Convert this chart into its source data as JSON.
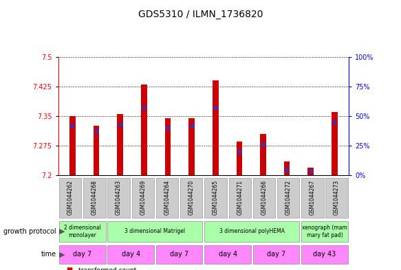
{
  "title": "GDS5310 / ILMN_1736820",
  "samples": [
    "GSM1044262",
    "GSM1044268",
    "GSM1044263",
    "GSM1044269",
    "GSM1044264",
    "GSM1044270",
    "GSM1044265",
    "GSM1044271",
    "GSM1044266",
    "GSM1044272",
    "GSM1044267",
    "GSM1044273"
  ],
  "transformed_counts": [
    7.35,
    7.325,
    7.355,
    7.43,
    7.345,
    7.345,
    7.44,
    7.285,
    7.305,
    7.235,
    7.22,
    7.36
  ],
  "percentile_ranks": [
    42,
    37,
    43,
    57,
    40,
    42,
    57,
    20,
    26,
    5,
    4,
    45
  ],
  "y_min": 7.2,
  "y_max": 7.5,
  "y_ticks": [
    7.2,
    7.275,
    7.35,
    7.425,
    7.5
  ],
  "y2_ticks": [
    0,
    25,
    50,
    75,
    100
  ],
  "bar_color": "#cc0000",
  "dot_color": "#3333cc",
  "title_fontsize": 10,
  "tick_fontsize": 7,
  "growth_protocol_groups": [
    {
      "label": "2 dimensional\nmonolayer",
      "start": 0,
      "end": 2,
      "color": "#aaffaa"
    },
    {
      "label": "3 dimensional Matrigel",
      "start": 2,
      "end": 6,
      "color": "#aaffaa"
    },
    {
      "label": "3 dimensional polyHEMA",
      "start": 6,
      "end": 10,
      "color": "#aaffaa"
    },
    {
      "label": "xenograph (mam\nmary fat pad)",
      "start": 10,
      "end": 12,
      "color": "#aaffaa"
    }
  ],
  "time_groups": [
    {
      "label": "day 7",
      "start": 0,
      "end": 2,
      "color": "#ff88ff"
    },
    {
      "label": "day 4",
      "start": 2,
      "end": 4,
      "color": "#ff88ff"
    },
    {
      "label": "day 7",
      "start": 4,
      "end": 6,
      "color": "#ff88ff"
    },
    {
      "label": "day 4",
      "start": 6,
      "end": 8,
      "color": "#ff88ff"
    },
    {
      "label": "day 7",
      "start": 8,
      "end": 10,
      "color": "#ff88ff"
    },
    {
      "label": "day 43",
      "start": 10,
      "end": 12,
      "color": "#ff88ff"
    }
  ],
  "sample_box_color": "#cccccc",
  "growth_protocol_label": "growth protocol",
  "time_label": "time"
}
